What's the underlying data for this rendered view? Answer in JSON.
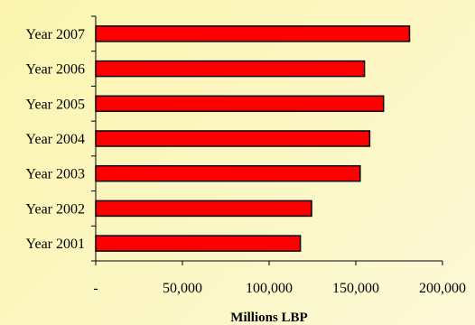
{
  "chart_data": {
    "type": "bar",
    "orientation": "horizontal",
    "categories": [
      "Year 2007",
      "Year 2006",
      "Year 2005",
      "Year 2004",
      "Year 2003",
      "Year 2002",
      "Year 2001"
    ],
    "values": [
      181000,
      155000,
      166000,
      158000,
      152500,
      124500,
      118000
    ],
    "xlabel": "Millions LBP",
    "ylabel": "",
    "xlim": [
      0,
      200000
    ],
    "xticks": [
      0,
      50000,
      100000,
      150000,
      200000
    ],
    "xtick_labels": [
      "-",
      "50,000",
      "100,000",
      "150,000",
      "200,000"
    ],
    "grid": false,
    "legend": "none",
    "bar_color": "#ff0000",
    "bar_edge_color": "#000000",
    "background_color": "#fcf7c4"
  }
}
